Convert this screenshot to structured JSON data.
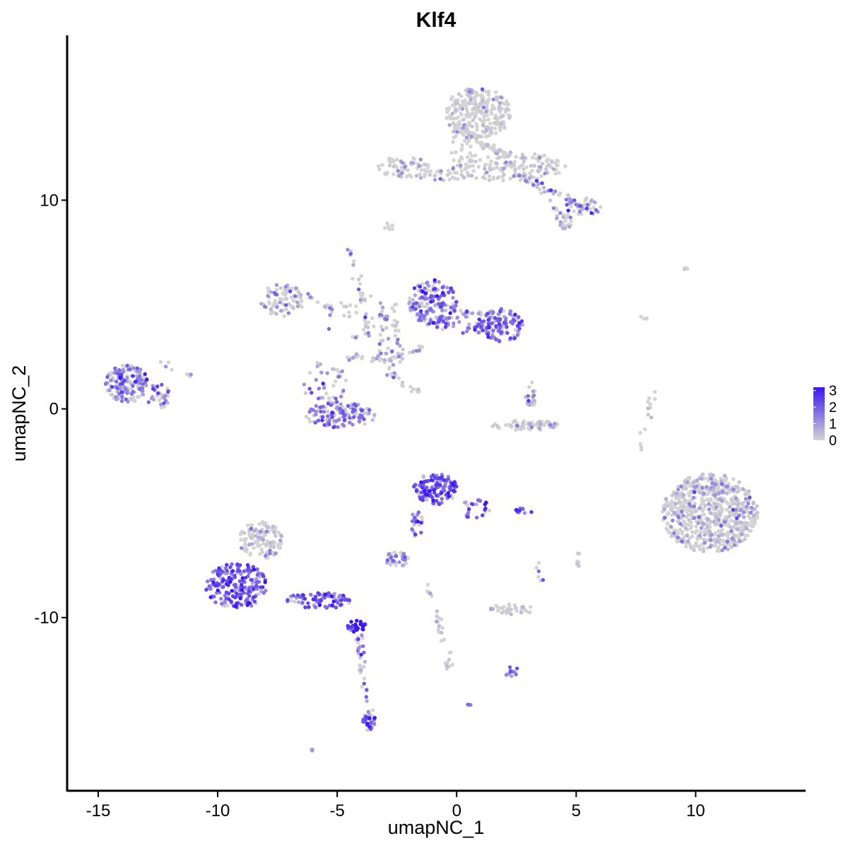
{
  "chart_data": {
    "type": "scatter",
    "title": "Klf4",
    "xlabel": "umapNC_1",
    "ylabel": "umapNC_2",
    "xlim": [
      -16.3,
      14.6
    ],
    "ylim": [
      -18.3,
      17.9
    ],
    "x_ticks": [
      -15,
      -10,
      -5,
      0,
      5,
      10
    ],
    "x_tick_labels": [
      "-15",
      "-10",
      "-5",
      "0",
      "5",
      "10"
    ],
    "y_ticks": [
      -10,
      0,
      10
    ],
    "y_tick_labels": [
      "-10",
      "0",
      "10"
    ],
    "grid": false,
    "color_scale": {
      "low_color": "#D3D3D3",
      "high_color": "#3A17F2",
      "min": 0,
      "max": 3.2,
      "legend_ticks": [
        0,
        1,
        2,
        3
      ],
      "legend_tick_labels": [
        "0",
        "1",
        "2",
        "3"
      ],
      "legend_position": "right"
    },
    "clusters": [
      {
        "cx": 0.9,
        "cy": 14.2,
        "rx": 1.4,
        "ry": 1.2,
        "n": 260,
        "expr": 0.2
      },
      {
        "cx": 2.2,
        "cy": 11.6,
        "rx": 2.5,
        "ry": 0.7,
        "n": 150,
        "expr": 0.3
      },
      {
        "cx": 0.2,
        "cy": 12.5,
        "rx": 0.5,
        "ry": 1.2,
        "n": 40,
        "expr": 0.3
      },
      {
        "cx": -2.2,
        "cy": 11.6,
        "rx": 1.1,
        "ry": 0.5,
        "n": 60,
        "expr": 0.5
      },
      {
        "cx": -0.6,
        "cy": 11.2,
        "rx": 1.1,
        "ry": 0.25,
        "n": 25,
        "expr": 0.7
      },
      {
        "cx": 5.3,
        "cy": 9.7,
        "rx": 0.8,
        "ry": 0.4,
        "n": 40,
        "expr": 1.2
      },
      {
        "cx": 4.5,
        "cy": 9.0,
        "rx": 0.4,
        "ry": 0.4,
        "n": 15,
        "expr": 0.9
      },
      {
        "cx": -1.0,
        "cy": 5.1,
        "rx": 1.0,
        "ry": 1.1,
        "n": 160,
        "expr": 1.6
      },
      {
        "cx": 1.9,
        "cy": 4.0,
        "rx": 0.9,
        "ry": 0.8,
        "n": 120,
        "expr": 1.7
      },
      {
        "cx": 0.4,
        "cy": 4.2,
        "rx": 1.4,
        "ry": 0.6,
        "n": 60,
        "expr": 1.4
      },
      {
        "cx": -7.3,
        "cy": 5.2,
        "rx": 0.9,
        "ry": 0.8,
        "n": 80,
        "expr": 0.9
      },
      {
        "cx": -5.5,
        "cy": 1.2,
        "rx": 0.9,
        "ry": 1.1,
        "n": 40,
        "expr": 1.2
      },
      {
        "cx": -4.9,
        "cy": -0.3,
        "rx": 1.5,
        "ry": 0.6,
        "n": 130,
        "expr": 1.4
      },
      {
        "cx": -4.0,
        "cy": 4.5,
        "rx": 1.6,
        "ry": 1.3,
        "n": 45,
        "expr": 0.9
      },
      {
        "cx": -2.8,
        "cy": 2.8,
        "rx": 0.6,
        "ry": 0.9,
        "n": 30,
        "expr": 1.0
      },
      {
        "cx": -13.8,
        "cy": 1.2,
        "rx": 0.9,
        "ry": 0.9,
        "n": 160,
        "expr": 1.4
      },
      {
        "cx": -12.5,
        "cy": 0.6,
        "rx": 0.5,
        "ry": 0.6,
        "n": 30,
        "expr": 1.3
      },
      {
        "cx": 3.1,
        "cy": 0.7,
        "rx": 0.25,
        "ry": 0.6,
        "n": 20,
        "expr": 1.3
      },
      {
        "cx": 2.9,
        "cy": -0.8,
        "rx": 1.4,
        "ry": 0.25,
        "n": 70,
        "expr": 0.3
      },
      {
        "cx": 10.6,
        "cy": -5.0,
        "rx": 2.0,
        "ry": 1.9,
        "n": 700,
        "expr": 0.5
      },
      {
        "cx": -0.9,
        "cy": -3.8,
        "rx": 0.9,
        "ry": 0.8,
        "n": 130,
        "expr": 1.9
      },
      {
        "cx": 0.8,
        "cy": -4.8,
        "rx": 0.6,
        "ry": 0.5,
        "n": 25,
        "expr": 1.8
      },
      {
        "cx": -1.6,
        "cy": -5.5,
        "rx": 0.3,
        "ry": 0.8,
        "n": 15,
        "expr": 1.6
      },
      {
        "cx": -2.5,
        "cy": -7.2,
        "rx": 0.5,
        "ry": 0.35,
        "n": 40,
        "expr": 1.1
      },
      {
        "cx": -9.2,
        "cy": -8.5,
        "rx": 1.3,
        "ry": 1.1,
        "n": 220,
        "expr": 2.0
      },
      {
        "cx": -8.2,
        "cy": -6.3,
        "rx": 0.9,
        "ry": 0.9,
        "n": 120,
        "expr": 0.6
      },
      {
        "cx": -5.8,
        "cy": -9.2,
        "rx": 1.4,
        "ry": 0.4,
        "n": 90,
        "expr": 1.9
      },
      {
        "cx": -4.2,
        "cy": -10.4,
        "rx": 0.4,
        "ry": 0.3,
        "n": 30,
        "expr": 2.9
      },
      {
        "cx": -3.7,
        "cy": -15.0,
        "rx": 0.3,
        "ry": 0.4,
        "n": 25,
        "expr": 2.2
      },
      {
        "cx": 2.3,
        "cy": -9.6,
        "rx": 0.9,
        "ry": 0.3,
        "n": 35,
        "expr": 0.4
      },
      {
        "cx": 2.3,
        "cy": -12.6,
        "rx": 0.3,
        "ry": 0.25,
        "n": 12,
        "expr": 1.8
      },
      {
        "cx": 2.8,
        "cy": -4.9,
        "rx": 0.35,
        "ry": 0.15,
        "n": 10,
        "expr": 2.2
      },
      {
        "cx": 5.1,
        "cy": -7.2,
        "rx": 0.15,
        "ry": 0.4,
        "n": 8,
        "expr": 0.3
      },
      {
        "cx": -2.9,
        "cy": 8.7,
        "rx": 0.25,
        "ry": 0.2,
        "n": 6,
        "expr": 0.4
      },
      {
        "cx": 9.5,
        "cy": 6.7,
        "rx": 0.3,
        "ry": 0.1,
        "n": 4,
        "expr": 0.1
      },
      {
        "cx": 0.5,
        "cy": -14.2,
        "rx": 0.1,
        "ry": 0.1,
        "n": 3,
        "expr": 2.6
      },
      {
        "cx": -6.1,
        "cy": -16.3,
        "rx": 0.1,
        "ry": 0.1,
        "n": 3,
        "expr": 0.2
      }
    ],
    "trails": [
      {
        "from": [
          -4.2,
          -10.5
        ],
        "to": [
          -3.6,
          -14.8
        ],
        "n": 40,
        "expr": 1.3
      },
      {
        "from": [
          -0.9,
          -9.4
        ],
        "to": [
          -0.3,
          -12.4
        ],
        "n": 22,
        "expr": 0.5
      },
      {
        "from": [
          -1.6,
          -4.8
        ],
        "to": [
          -1.9,
          -6.2
        ],
        "n": 10,
        "expr": 1.5
      },
      {
        "from": [
          0.7,
          12.9
        ],
        "to": [
          2.0,
          12.2
        ],
        "n": 30,
        "expr": 0.2
      },
      {
        "from": [
          2.5,
          11.2
        ],
        "to": [
          5.5,
          9.6
        ],
        "n": 35,
        "expr": 1.0
      },
      {
        "from": [
          3.2,
          11.0
        ],
        "to": [
          4.8,
          8.7
        ],
        "n": 18,
        "expr": 0.6
      },
      {
        "from": [
          -4.4,
          7.6
        ],
        "to": [
          -3.6,
          3.5
        ],
        "n": 25,
        "expr": 0.7
      },
      {
        "from": [
          -3.2,
          2.2
        ],
        "to": [
          -1.3,
          3.0
        ],
        "n": 15,
        "expr": 1.0
      },
      {
        "from": [
          -3.0,
          1.8
        ],
        "to": [
          -1.4,
          0.6
        ],
        "n": 18,
        "expr": 0.5
      },
      {
        "from": [
          -4.6,
          2.5
        ],
        "to": [
          -3.0,
          2.4
        ],
        "n": 18,
        "expr": 0.6
      },
      {
        "from": [
          -3.3,
          4.6
        ],
        "to": [
          -2.2,
          3.6
        ],
        "n": 15,
        "expr": 1.0
      },
      {
        "from": [
          -6.4,
          5.5
        ],
        "to": [
          -5.0,
          4.6
        ],
        "n": 10,
        "expr": 0.8
      },
      {
        "from": [
          7.6,
          -2.0
        ],
        "to": [
          8.2,
          0.8
        ],
        "n": 14,
        "expr": 0.0
      },
      {
        "from": [
          7.7,
          4.6
        ],
        "to": [
          7.8,
          4.3
        ],
        "n": 4,
        "expr": 0.1
      },
      {
        "from": [
          -12.6,
          2.4
        ],
        "to": [
          -11.0,
          1.5
        ],
        "n": 8,
        "expr": 0.9
      },
      {
        "from": [
          -1.0,
          -9.3
        ],
        "to": [
          -1.3,
          -8.3
        ],
        "n": 6,
        "expr": 0.4
      },
      {
        "from": [
          3.4,
          -7.3
        ],
        "to": [
          3.5,
          -8.5
        ],
        "n": 6,
        "expr": 1.0
      }
    ]
  }
}
